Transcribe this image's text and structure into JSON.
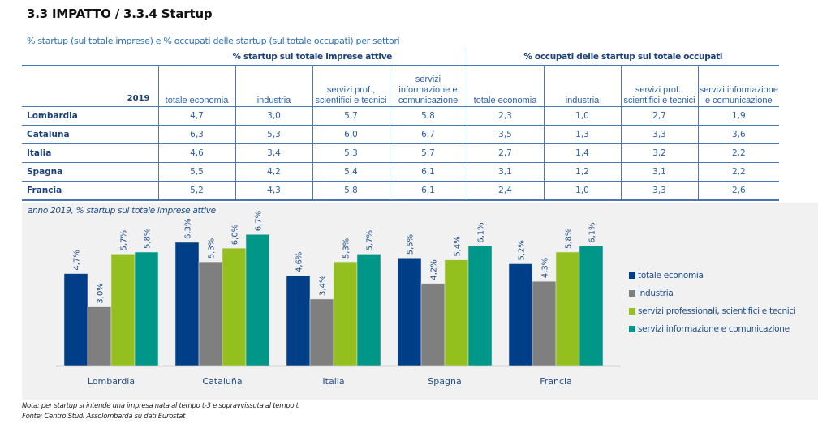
{
  "header": {
    "title": "3.3 IMPATTO / 3.3.4 Startup",
    "subtitle": "% startup (sul totale imprese) e % occupati delle startup (sul totale occupati) per settori"
  },
  "table": {
    "year_label": "2019",
    "groups": [
      "% startup sul totale imprese attive",
      "% occupati delle startup sul totale occupati"
    ],
    "columns": [
      "totale economia",
      "industria",
      "servizi prof., scientifici e tecnici",
      "servizi informazione e comunicazione",
      "totale economia",
      "industria",
      "servizi prof., scientifici e tecnici",
      "servizi informazione e comunicazione"
    ],
    "rows": [
      {
        "name": "Lombardia",
        "values": [
          "4,7",
          "3,0",
          "5,7",
          "5,8",
          "2,3",
          "1,0",
          "2,7",
          "1,9"
        ]
      },
      {
        "name": "Cataluña",
        "values": [
          "6,3",
          "5,3",
          "6,0",
          "6,7",
          "3,5",
          "1,3",
          "3,3",
          "3,6"
        ]
      },
      {
        "name": "Italia",
        "values": [
          "4,6",
          "3,4",
          "5,3",
          "5,7",
          "2,7",
          "1,4",
          "3,2",
          "2,2"
        ]
      },
      {
        "name": "Spagna",
        "values": [
          "5,5",
          "4,2",
          "5,4",
          "6,1",
          "3,1",
          "1,2",
          "3,1",
          "2,2"
        ]
      },
      {
        "name": "Francia",
        "values": [
          "5,2",
          "4,3",
          "5,8",
          "6,1",
          "2,4",
          "1,0",
          "3,3",
          "2,6"
        ]
      }
    ]
  },
  "chart_caption": "anno 2019, % startup sul totale imprese attive",
  "chart_data": {
    "type": "bar",
    "title": "anno 2019, % startup sul totale imprese attive",
    "xlabel": "",
    "ylabel": "",
    "categories": [
      "Lombardia",
      "Cataluña",
      "Italia",
      "Spagna",
      "Francia"
    ],
    "series": [
      {
        "name": "totale economia",
        "color": "#003f87",
        "values": [
          4.7,
          6.3,
          4.6,
          5.5,
          5.2
        ],
        "labels": [
          "4,7%",
          "6,3%",
          "4,6%",
          "5,5%",
          "5,2%"
        ]
      },
      {
        "name": "industria",
        "color": "#7f7f7f",
        "values": [
          3.0,
          5.3,
          3.4,
          4.2,
          4.3
        ],
        "labels": [
          "3,0%",
          "5,3%",
          "3,4%",
          "4,2%",
          "4,3%"
        ]
      },
      {
        "name": "servizi professionali, scientifici e tecnici",
        "color": "#93c01f",
        "values": [
          5.7,
          6.0,
          5.3,
          5.4,
          5.8
        ],
        "labels": [
          "5,7%",
          "6,0%",
          "5,3%",
          "5,4%",
          "5,8%"
        ]
      },
      {
        "name": "servizi informazione e comunicazione",
        "color": "#009688",
        "values": [
          5.8,
          6.7,
          5.7,
          6.1,
          6.1
        ],
        "labels": [
          "5,8%",
          "6,7%",
          "5,7%",
          "6,1%",
          "6,1%"
        ]
      }
    ],
    "ylim": [
      0,
      7.5
    ],
    "grid": false,
    "legend": "right",
    "data_labels": "rotated vertical above bars"
  },
  "footer": {
    "note": "Nota: per startup si intende una impresa nata al tempo t-3 e sopravvissuta al tempo t",
    "source": "Fonte: Centro Studi Assolombarda su dati Eurostat"
  }
}
